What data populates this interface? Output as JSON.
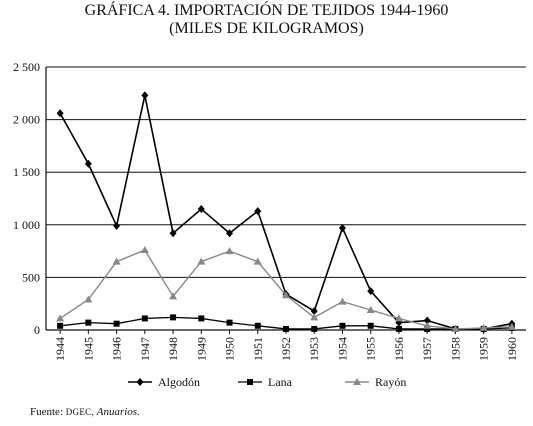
{
  "title_line1": "GRÁFICA 4. IMPORTACIÓN DE TEJIDOS 1944-1960",
  "title_line2": "(MILES DE KILOGRAMOS)",
  "source": {
    "prefix": "Fuente:",
    "org": "DGEC,",
    "work": "Anuarios."
  },
  "chart_data": {
    "type": "line",
    "title": "GRÁFICA 4. IMPORTACIÓN DE TEJIDOS 1944-1960",
    "subtitle": "(MILES DE KILOGRAMOS)",
    "xlabel": "",
    "ylabel": "",
    "ylim": [
      0,
      2500
    ],
    "yticks": [
      0,
      500,
      1000,
      1500,
      2000,
      2500
    ],
    "ytick_labels": [
      "0",
      "500",
      "1 000",
      "1 500",
      "2 000",
      "2 500"
    ],
    "categories": [
      "1944",
      "1945",
      "1946",
      "1947",
      "1948",
      "1949",
      "1950",
      "1951",
      "1952",
      "1953",
      "1954",
      "1955",
      "1956",
      "1957",
      "1958",
      "1959",
      "1960"
    ],
    "grid": "horizontal",
    "legend_position": "bottom",
    "series": [
      {
        "name": "Algodón",
        "marker": "diamond",
        "values": [
          2060,
          1580,
          990,
          2230,
          920,
          1150,
          920,
          1130,
          340,
          180,
          970,
          370,
          70,
          90,
          10,
          10,
          60
        ]
      },
      {
        "name": "Lana",
        "marker": "square",
        "values": [
          40,
          70,
          60,
          110,
          120,
          110,
          70,
          40,
          10,
          10,
          40,
          40,
          10,
          10,
          10,
          10,
          20
        ]
      },
      {
        "name": "Rayón",
        "marker": "triangle",
        "values": [
          110,
          290,
          650,
          760,
          320,
          650,
          750,
          650,
          330,
          120,
          270,
          190,
          110,
          40,
          10,
          20,
          30
        ]
      }
    ]
  }
}
